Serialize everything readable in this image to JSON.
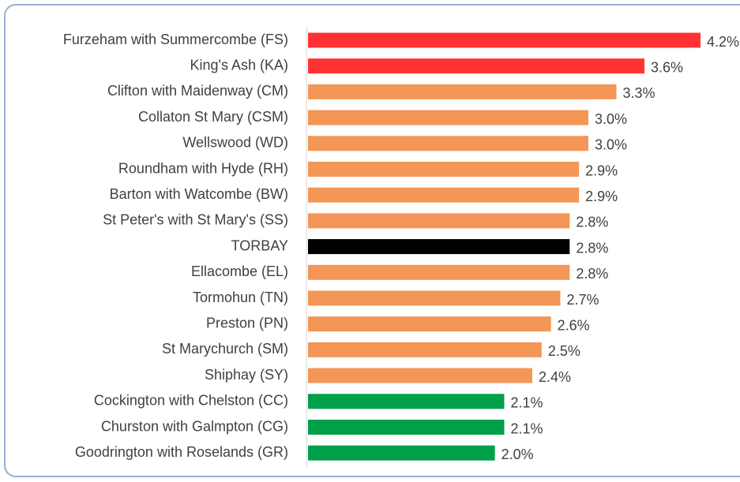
{
  "chart_data": {
    "type": "bar",
    "orientation": "horizontal",
    "categories": [
      "Furzeham with Summercombe (FS)",
      "King's Ash (KA)",
      "Clifton with Maidenway (CM)",
      "Collaton St Mary (CSM)",
      "Wellswood (WD)",
      "Roundham with Hyde (RH)",
      "Barton with Watcombe (BW)",
      "St Peter's with St Mary's (SS)",
      "TORBAY",
      "Ellacombe (EL)",
      "Tormohun (TN)",
      "Preston (PN)",
      "St Marychurch (SM)",
      "Shiphay (SY)",
      "Cockington with Chelston (CC)",
      "Churston with Galmpton (CG)",
      "Goodrington with Roselands (GR)"
    ],
    "values": [
      4.2,
      3.6,
      3.3,
      3.0,
      3.0,
      2.9,
      2.9,
      2.8,
      2.8,
      2.8,
      2.7,
      2.6,
      2.5,
      2.4,
      2.1,
      2.1,
      2.0
    ],
    "value_labels": [
      "4.2%",
      "3.6%",
      "3.3%",
      "3.0%",
      "3.0%",
      "2.9%",
      "2.9%",
      "2.8%",
      "2.8%",
      "2.8%",
      "2.7%",
      "2.6%",
      "2.5%",
      "2.4%",
      "2.1%",
      "2.1%",
      "2.0%"
    ],
    "colors": [
      "#ff3333",
      "#ff3333",
      "#f39656",
      "#f39656",
      "#f39656",
      "#f39656",
      "#f39656",
      "#f39656",
      "#000000",
      "#f39656",
      "#f39656",
      "#f39656",
      "#f39656",
      "#f39656",
      "#00a04a",
      "#00a04a",
      "#00a04a"
    ]
  }
}
